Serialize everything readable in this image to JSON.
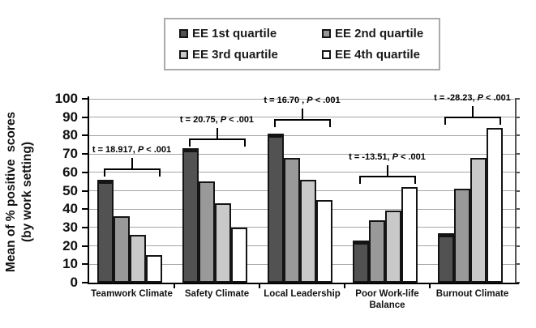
{
  "figure": {
    "background": "#ffffff"
  },
  "legend": {
    "position": "top-center",
    "items": [
      "EE 1st quartile",
      "EE 2nd quartile",
      "EE 3rd quartile",
      "EE 4th quartile"
    ]
  },
  "colors": {
    "gridline": "#a6a6a6",
    "axis": "#000000",
    "bar_border": "#141414",
    "right_frame": "#555555",
    "legend_border": "#ababab",
    "series": [
      "#525252",
      "#999999",
      "#c9c9c9",
      "#ffffff"
    ]
  },
  "chart_data": {
    "type": "bar",
    "title": "",
    "categories": [
      "Teamwork Climate",
      "Safety Climate",
      "Local Leadership",
      "Poor Work-life Balance",
      "Burnout Climate"
    ],
    "series": [
      {
        "name": "EE 1st quartile",
        "color": "#525252",
        "values": [
          56,
          73,
          81,
          23,
          27
        ]
      },
      {
        "name": "EE 2nd quartile",
        "color": "#999999",
        "values": [
          36,
          55,
          68,
          34,
          51
        ]
      },
      {
        "name": "EE 3rd quartile",
        "color": "#c9c9c9",
        "values": [
          26,
          43,
          56,
          39,
          68
        ]
      },
      {
        "name": "EE 4th quartile",
        "color": "#ffffff",
        "values": [
          15,
          30,
          45,
          52,
          84
        ]
      }
    ],
    "ylabel_line1": "Mean of % positive  scores",
    "ylabel_line2": "(by work setting)",
    "xlabel": "",
    "ylim": [
      0,
      100
    ],
    "yticks": [
      0,
      10,
      20,
      30,
      40,
      50,
      60,
      70,
      80,
      90,
      100
    ],
    "grid": true,
    "legend_position": "top-center",
    "annotations": [
      {
        "category": "Teamwork Climate",
        "text_left": "t = 18.917, ",
        "p": "P",
        "text_right": " < .001",
        "bracket_value": 62
      },
      {
        "category": "Safety Climate",
        "text_left": "t = 20.75, ",
        "p": "P",
        "text_right": " < .001",
        "bracket_value": 78.5
      },
      {
        "category": "Local Leadership",
        "text_left": "t = 16.70 , ",
        "p": "P",
        "text_right": " < .001",
        "bracket_value": 89
      },
      {
        "category": "Poor Work-life Balance",
        "text_left": "t = -13.51, ",
        "p": "P",
        "text_right": " < .001",
        "bracket_value": 58
      },
      {
        "category": "Burnout Climate",
        "text_left": "t = -28.23, ",
        "p": "P",
        "text_right": " < .001",
        "bracket_value": 90.5
      }
    ]
  }
}
